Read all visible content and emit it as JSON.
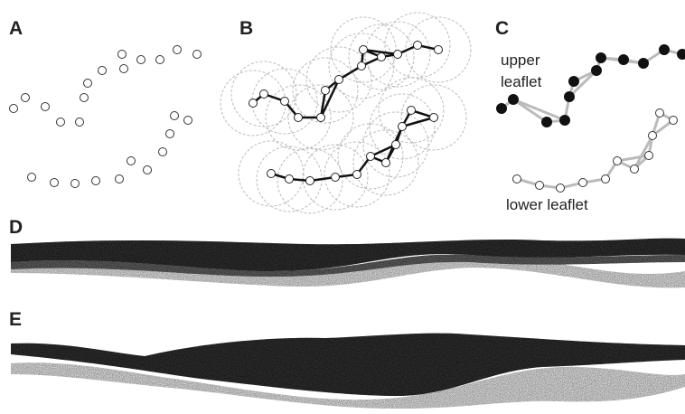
{
  "panels": [
    {
      "label": "A"
    },
    {
      "label": "B"
    },
    {
      "label": "C"
    },
    {
      "label": "D"
    },
    {
      "label": "E"
    }
  ],
  "annotations": {
    "upper_leaflet": [
      "upper",
      "leaflet"
    ],
    "lower_leaflet": "lower leaflet"
  }
}
